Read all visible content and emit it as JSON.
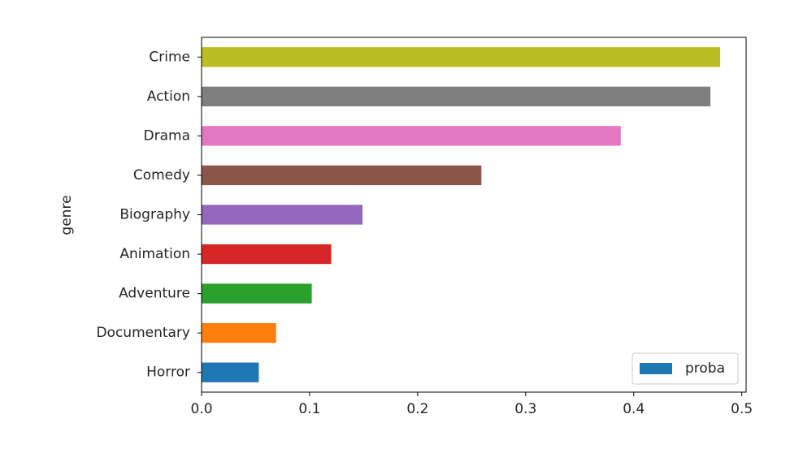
{
  "chart_data": {
    "type": "barh",
    "ylabel": "genre",
    "categories": [
      "Horror",
      "Documentary",
      "Adventure",
      "Animation",
      "Biography",
      "Comedy",
      "Drama",
      "Action",
      "Crime"
    ],
    "series": [
      {
        "name": "proba",
        "colors": [
          "#1f77b4",
          "#ff7f0e",
          "#2ca02c",
          "#d62728",
          "#9467bd",
          "#8c564b",
          "#e377c2",
          "#7f7f7f",
          "#bcbd22"
        ],
        "values": [
          0.053,
          0.069,
          0.102,
          0.12,
          0.149,
          0.259,
          0.388,
          0.471,
          0.48
        ]
      }
    ],
    "xlim": [
      0,
      0.504
    ],
    "xticks": [
      {
        "value": 0,
        "label": "0.0"
      },
      0.1,
      0.2,
      0.3,
      0.4,
      0.5
    ],
    "legend": "lower right",
    "grid": false
  }
}
